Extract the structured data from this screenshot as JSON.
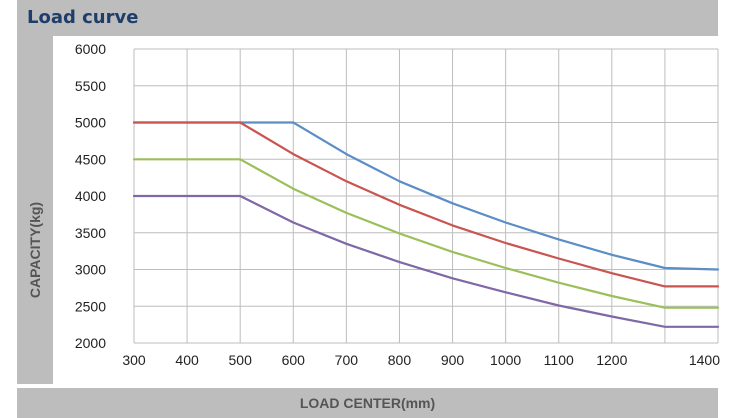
{
  "chart_data": {
    "type": "line",
    "title": "Load curve",
    "xlabel": "LOAD CENTER(mm)",
    "ylabel": "CAPACITY(kg)",
    "xlim": [
      300,
      1400
    ],
    "ylim": [
      2000,
      6000
    ],
    "x_ticks": [
      "300",
      "400",
      "500",
      "600",
      "700",
      "800",
      "900",
      "1000",
      "1100",
      "1200",
      "1400"
    ],
    "y_ticks": [
      "6000",
      "5500",
      "5000",
      "4500",
      "4000",
      "3500",
      "3000",
      "2500",
      "2000"
    ],
    "grid": true,
    "legend": "none",
    "x": [
      300,
      500,
      600,
      700,
      800,
      900,
      1000,
      1100,
      1200,
      1300,
      1400
    ],
    "series": [
      {
        "color": "#5b8ec6",
        "values": [
          5000,
          5000,
          5000,
          4570,
          4200,
          3900,
          3640,
          3410,
          3200,
          3020,
          3000
        ]
      },
      {
        "color": "#c95450",
        "values": [
          5000,
          5000,
          4570,
          4200,
          3880,
          3600,
          3360,
          3150,
          2950,
          2770,
          2770
        ]
      },
      {
        "color": "#9bbf5a",
        "values": [
          4500,
          4500,
          4100,
          3770,
          3490,
          3240,
          3020,
          2820,
          2640,
          2480,
          2480
        ]
      },
      {
        "color": "#8068a8",
        "values": [
          4000,
          4000,
          3640,
          3350,
          3100,
          2880,
          2690,
          2510,
          2360,
          2220,
          2220
        ]
      }
    ]
  }
}
